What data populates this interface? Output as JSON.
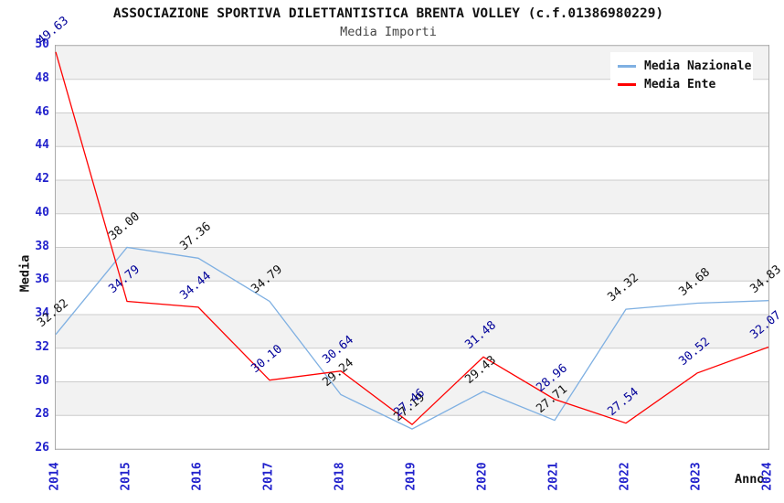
{
  "title": "ASSOCIAZIONE SPORTIVA DILETTANTISTICA BRENTA VOLLEY (c.f.01386980229)",
  "subtitle": "Media Importi",
  "axes": {
    "x_title": "Anno",
    "y_title": "Media",
    "x_ticks": [
      "2014",
      "2015",
      "2016",
      "2017",
      "2018",
      "2019",
      "2020",
      "2021",
      "2022",
      "2023",
      "2024"
    ],
    "y_ticks": [
      26,
      28,
      30,
      32,
      34,
      36,
      38,
      40,
      42,
      44,
      46,
      48,
      50
    ]
  },
  "colors": {
    "band_gray": "#F2F2F2",
    "band_white": "#FFFFFF",
    "gridline": "#CCCCCC",
    "plot_border": "#AAAAAA",
    "tick_label": "#2222CC",
    "title_text": "#111111",
    "subtitle_text": "#444444"
  },
  "chart_data": {
    "type": "line",
    "title": "ASSOCIAZIONE SPORTIVA DILETTANTISTICA BRENTA VOLLEY (c.f.01386980229)",
    "subtitle": "Media Importi",
    "xlabel": "Anno",
    "ylabel": "Media",
    "x": [
      2014,
      2015,
      2016,
      2017,
      2018,
      2019,
      2020,
      2021,
      2022,
      2023,
      2024
    ],
    "ylim": [
      26,
      50
    ],
    "ytick_step": 2,
    "grid": "horizontal-gridlines-with-alternating-bands",
    "legend_position": "top-right-inside",
    "series": [
      {
        "name": "Media Nazionale",
        "color": "#7FB0E2",
        "label_color": "#111111",
        "values": [
          32.82,
          38.0,
          37.36,
          34.79,
          29.24,
          27.19,
          29.43,
          27.71,
          34.32,
          34.68,
          34.83
        ]
      },
      {
        "name": "Media Ente",
        "color": "#FF0000",
        "label_color": "#000099",
        "values": [
          49.63,
          34.79,
          34.44,
          30.1,
          30.64,
          27.46,
          31.48,
          28.96,
          27.54,
          30.52,
          32.07
        ]
      }
    ]
  }
}
